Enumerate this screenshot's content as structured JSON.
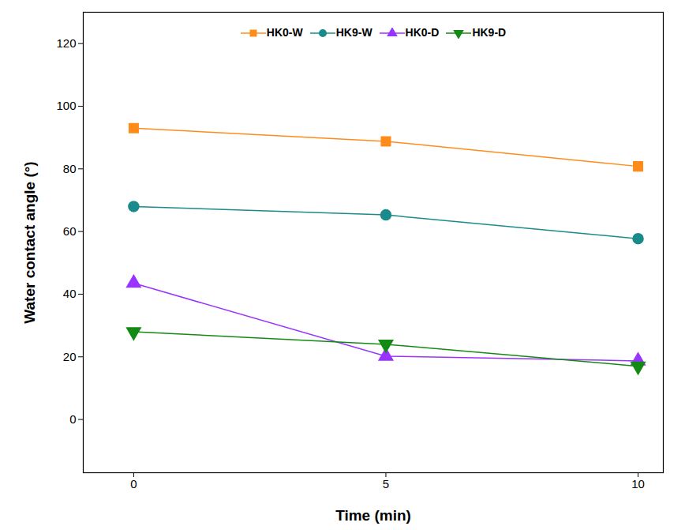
{
  "chart_data": {
    "type": "line",
    "x_label": "Time (min)",
    "y_label": "Water contact angle (°)",
    "x": [
      0,
      5,
      10
    ],
    "xlim": [
      -1,
      10.5
    ],
    "xticks": [
      0,
      5,
      10
    ],
    "ylim": [
      -17,
      130
    ],
    "yticks": [
      0,
      20,
      40,
      60,
      80,
      100,
      120
    ],
    "grid": false,
    "legend": "top",
    "series": [
      {
        "name": "HK0-W",
        "color": "#ff8c1a",
        "marker": "square",
        "values": [
          93,
          88.8,
          80.8
        ]
      },
      {
        "name": "HK9-W",
        "color": "#1a8a8a",
        "marker": "circle",
        "values": [
          68,
          65.3,
          57.7
        ]
      },
      {
        "name": "HK0-D",
        "color": "#9933ff",
        "marker": "triangle",
        "values": [
          43.5,
          20.2,
          18.7
        ]
      },
      {
        "name": "HK9-D",
        "color": "#138a13",
        "marker": "triangle-down",
        "values": [
          28,
          24,
          17
        ]
      }
    ]
  }
}
